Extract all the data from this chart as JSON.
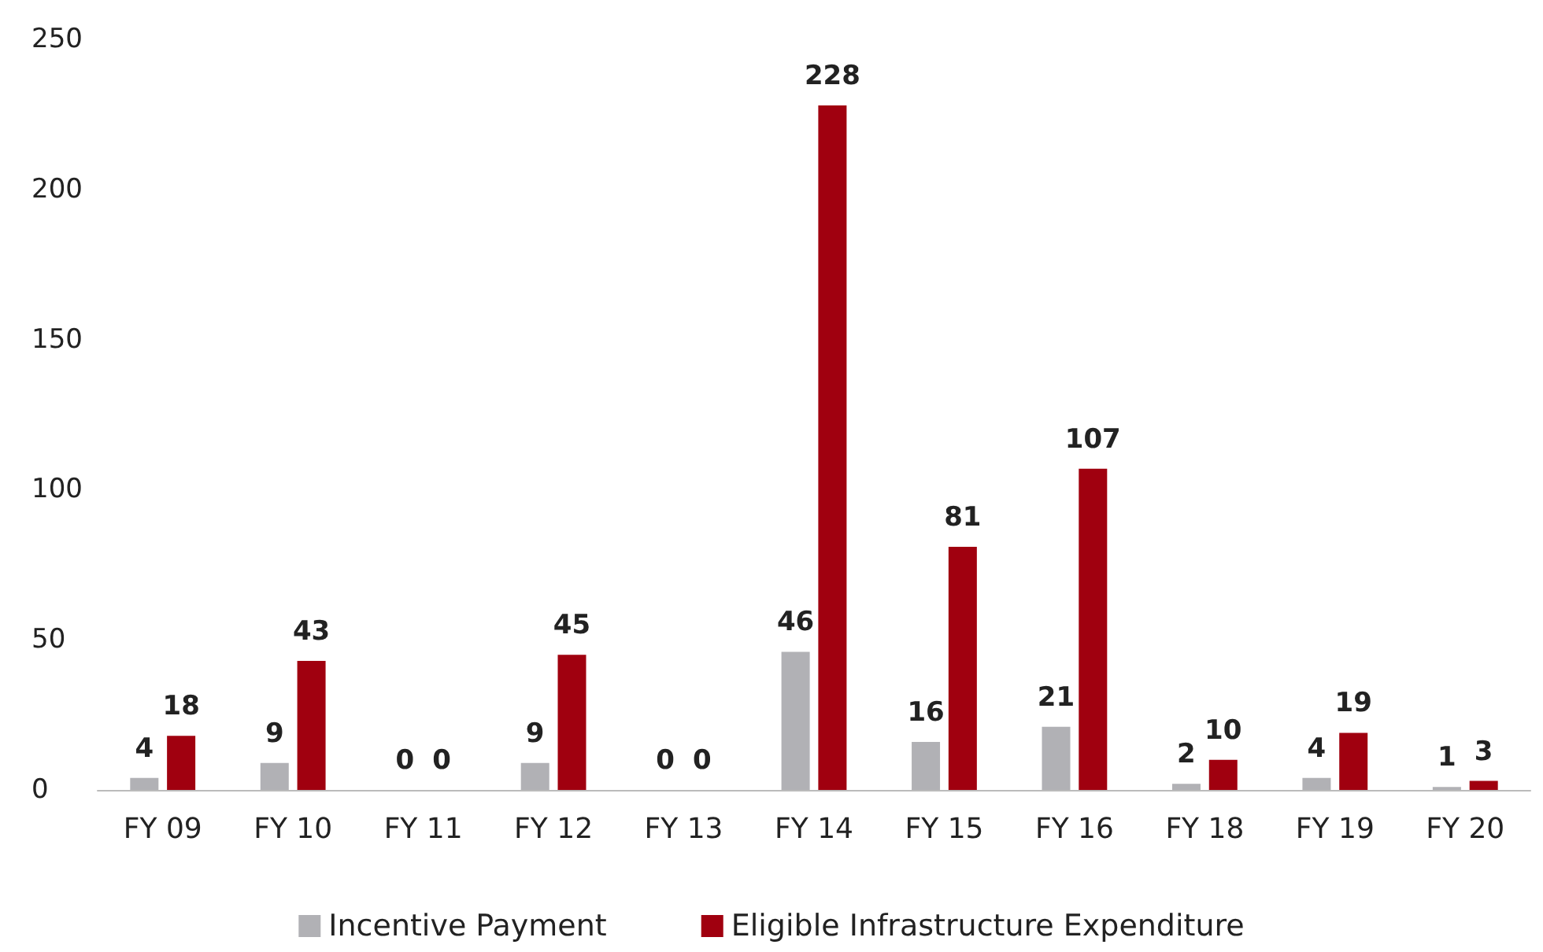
{
  "chart_data": {
    "type": "bar",
    "categories": [
      "FY 09",
      "FY 10",
      "FY 11",
      "FY 12",
      "FY 13",
      "FY 14",
      "FY 15",
      "FY 16",
      "FY 18",
      "FY 19",
      "FY 20"
    ],
    "series": [
      {
        "name": "Incentive Payment",
        "color": "#b1b1b5",
        "values": [
          4,
          9,
          0,
          9,
          0,
          46,
          16,
          21,
          2,
          4,
          1
        ]
      },
      {
        "name": "Eligible Infrastructure Expenditure",
        "color": "#a0000f",
        "values": [
          18,
          43,
          0,
          45,
          0,
          228,
          81,
          107,
          10,
          19,
          3
        ]
      }
    ],
    "ylim": [
      0,
      250
    ],
    "yticks": [
      0,
      50,
      100,
      150,
      200,
      250
    ],
    "data_labels": true,
    "grid": false,
    "legend": "bottom"
  }
}
